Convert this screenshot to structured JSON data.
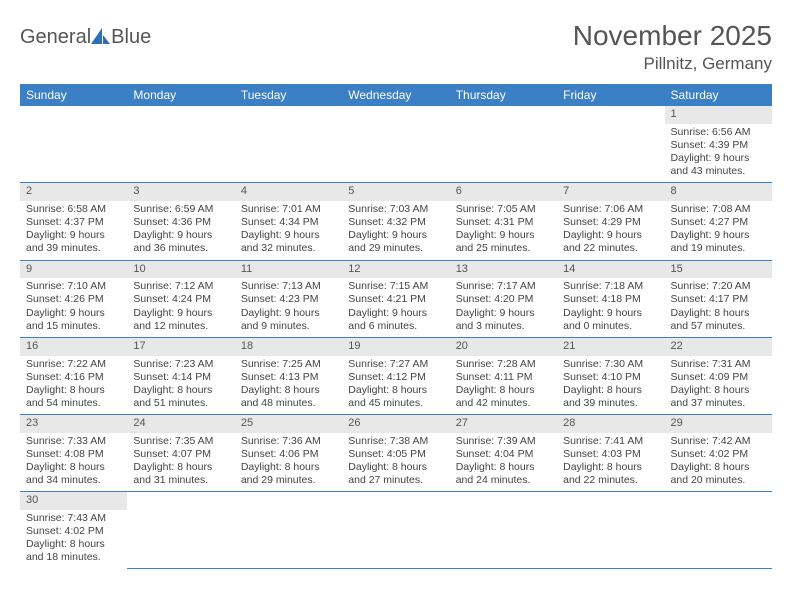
{
  "logo": {
    "part1": "General",
    "part2": "Blue"
  },
  "title": "November 2025",
  "location": "Pillnitz, Germany",
  "colors": {
    "header_bg": "#3b7fc4",
    "header_text": "#ffffff",
    "daynum_bg": "#e8e8e8",
    "row_border": "#3b7fc4",
    "text": "#444444",
    "title_color": "#555555"
  },
  "weekdays": [
    "Sunday",
    "Monday",
    "Tuesday",
    "Wednesday",
    "Thursday",
    "Friday",
    "Saturday"
  ],
  "weeks": [
    [
      null,
      null,
      null,
      null,
      null,
      null,
      {
        "n": "1",
        "sr": "Sunrise: 6:56 AM",
        "ss": "Sunset: 4:39 PM",
        "dl": "Daylight: 9 hours and 43 minutes."
      }
    ],
    [
      {
        "n": "2",
        "sr": "Sunrise: 6:58 AM",
        "ss": "Sunset: 4:37 PM",
        "dl": "Daylight: 9 hours and 39 minutes."
      },
      {
        "n": "3",
        "sr": "Sunrise: 6:59 AM",
        "ss": "Sunset: 4:36 PM",
        "dl": "Daylight: 9 hours and 36 minutes."
      },
      {
        "n": "4",
        "sr": "Sunrise: 7:01 AM",
        "ss": "Sunset: 4:34 PM",
        "dl": "Daylight: 9 hours and 32 minutes."
      },
      {
        "n": "5",
        "sr": "Sunrise: 7:03 AM",
        "ss": "Sunset: 4:32 PM",
        "dl": "Daylight: 9 hours and 29 minutes."
      },
      {
        "n": "6",
        "sr": "Sunrise: 7:05 AM",
        "ss": "Sunset: 4:31 PM",
        "dl": "Daylight: 9 hours and 25 minutes."
      },
      {
        "n": "7",
        "sr": "Sunrise: 7:06 AM",
        "ss": "Sunset: 4:29 PM",
        "dl": "Daylight: 9 hours and 22 minutes."
      },
      {
        "n": "8",
        "sr": "Sunrise: 7:08 AM",
        "ss": "Sunset: 4:27 PM",
        "dl": "Daylight: 9 hours and 19 minutes."
      }
    ],
    [
      {
        "n": "9",
        "sr": "Sunrise: 7:10 AM",
        "ss": "Sunset: 4:26 PM",
        "dl": "Daylight: 9 hours and 15 minutes."
      },
      {
        "n": "10",
        "sr": "Sunrise: 7:12 AM",
        "ss": "Sunset: 4:24 PM",
        "dl": "Daylight: 9 hours and 12 minutes."
      },
      {
        "n": "11",
        "sr": "Sunrise: 7:13 AM",
        "ss": "Sunset: 4:23 PM",
        "dl": "Daylight: 9 hours and 9 minutes."
      },
      {
        "n": "12",
        "sr": "Sunrise: 7:15 AM",
        "ss": "Sunset: 4:21 PM",
        "dl": "Daylight: 9 hours and 6 minutes."
      },
      {
        "n": "13",
        "sr": "Sunrise: 7:17 AM",
        "ss": "Sunset: 4:20 PM",
        "dl": "Daylight: 9 hours and 3 minutes."
      },
      {
        "n": "14",
        "sr": "Sunrise: 7:18 AM",
        "ss": "Sunset: 4:18 PM",
        "dl": "Daylight: 9 hours and 0 minutes."
      },
      {
        "n": "15",
        "sr": "Sunrise: 7:20 AM",
        "ss": "Sunset: 4:17 PM",
        "dl": "Daylight: 8 hours and 57 minutes."
      }
    ],
    [
      {
        "n": "16",
        "sr": "Sunrise: 7:22 AM",
        "ss": "Sunset: 4:16 PM",
        "dl": "Daylight: 8 hours and 54 minutes."
      },
      {
        "n": "17",
        "sr": "Sunrise: 7:23 AM",
        "ss": "Sunset: 4:14 PM",
        "dl": "Daylight: 8 hours and 51 minutes."
      },
      {
        "n": "18",
        "sr": "Sunrise: 7:25 AM",
        "ss": "Sunset: 4:13 PM",
        "dl": "Daylight: 8 hours and 48 minutes."
      },
      {
        "n": "19",
        "sr": "Sunrise: 7:27 AM",
        "ss": "Sunset: 4:12 PM",
        "dl": "Daylight: 8 hours and 45 minutes."
      },
      {
        "n": "20",
        "sr": "Sunrise: 7:28 AM",
        "ss": "Sunset: 4:11 PM",
        "dl": "Daylight: 8 hours and 42 minutes."
      },
      {
        "n": "21",
        "sr": "Sunrise: 7:30 AM",
        "ss": "Sunset: 4:10 PM",
        "dl": "Daylight: 8 hours and 39 minutes."
      },
      {
        "n": "22",
        "sr": "Sunrise: 7:31 AM",
        "ss": "Sunset: 4:09 PM",
        "dl": "Daylight: 8 hours and 37 minutes."
      }
    ],
    [
      {
        "n": "23",
        "sr": "Sunrise: 7:33 AM",
        "ss": "Sunset: 4:08 PM",
        "dl": "Daylight: 8 hours and 34 minutes."
      },
      {
        "n": "24",
        "sr": "Sunrise: 7:35 AM",
        "ss": "Sunset: 4:07 PM",
        "dl": "Daylight: 8 hours and 31 minutes."
      },
      {
        "n": "25",
        "sr": "Sunrise: 7:36 AM",
        "ss": "Sunset: 4:06 PM",
        "dl": "Daylight: 8 hours and 29 minutes."
      },
      {
        "n": "26",
        "sr": "Sunrise: 7:38 AM",
        "ss": "Sunset: 4:05 PM",
        "dl": "Daylight: 8 hours and 27 minutes."
      },
      {
        "n": "27",
        "sr": "Sunrise: 7:39 AM",
        "ss": "Sunset: 4:04 PM",
        "dl": "Daylight: 8 hours and 24 minutes."
      },
      {
        "n": "28",
        "sr": "Sunrise: 7:41 AM",
        "ss": "Sunset: 4:03 PM",
        "dl": "Daylight: 8 hours and 22 minutes."
      },
      {
        "n": "29",
        "sr": "Sunrise: 7:42 AM",
        "ss": "Sunset: 4:02 PM",
        "dl": "Daylight: 8 hours and 20 minutes."
      }
    ],
    [
      {
        "n": "30",
        "sr": "Sunrise: 7:43 AM",
        "ss": "Sunset: 4:02 PM",
        "dl": "Daylight: 8 hours and 18 minutes."
      },
      null,
      null,
      null,
      null,
      null,
      null
    ]
  ]
}
